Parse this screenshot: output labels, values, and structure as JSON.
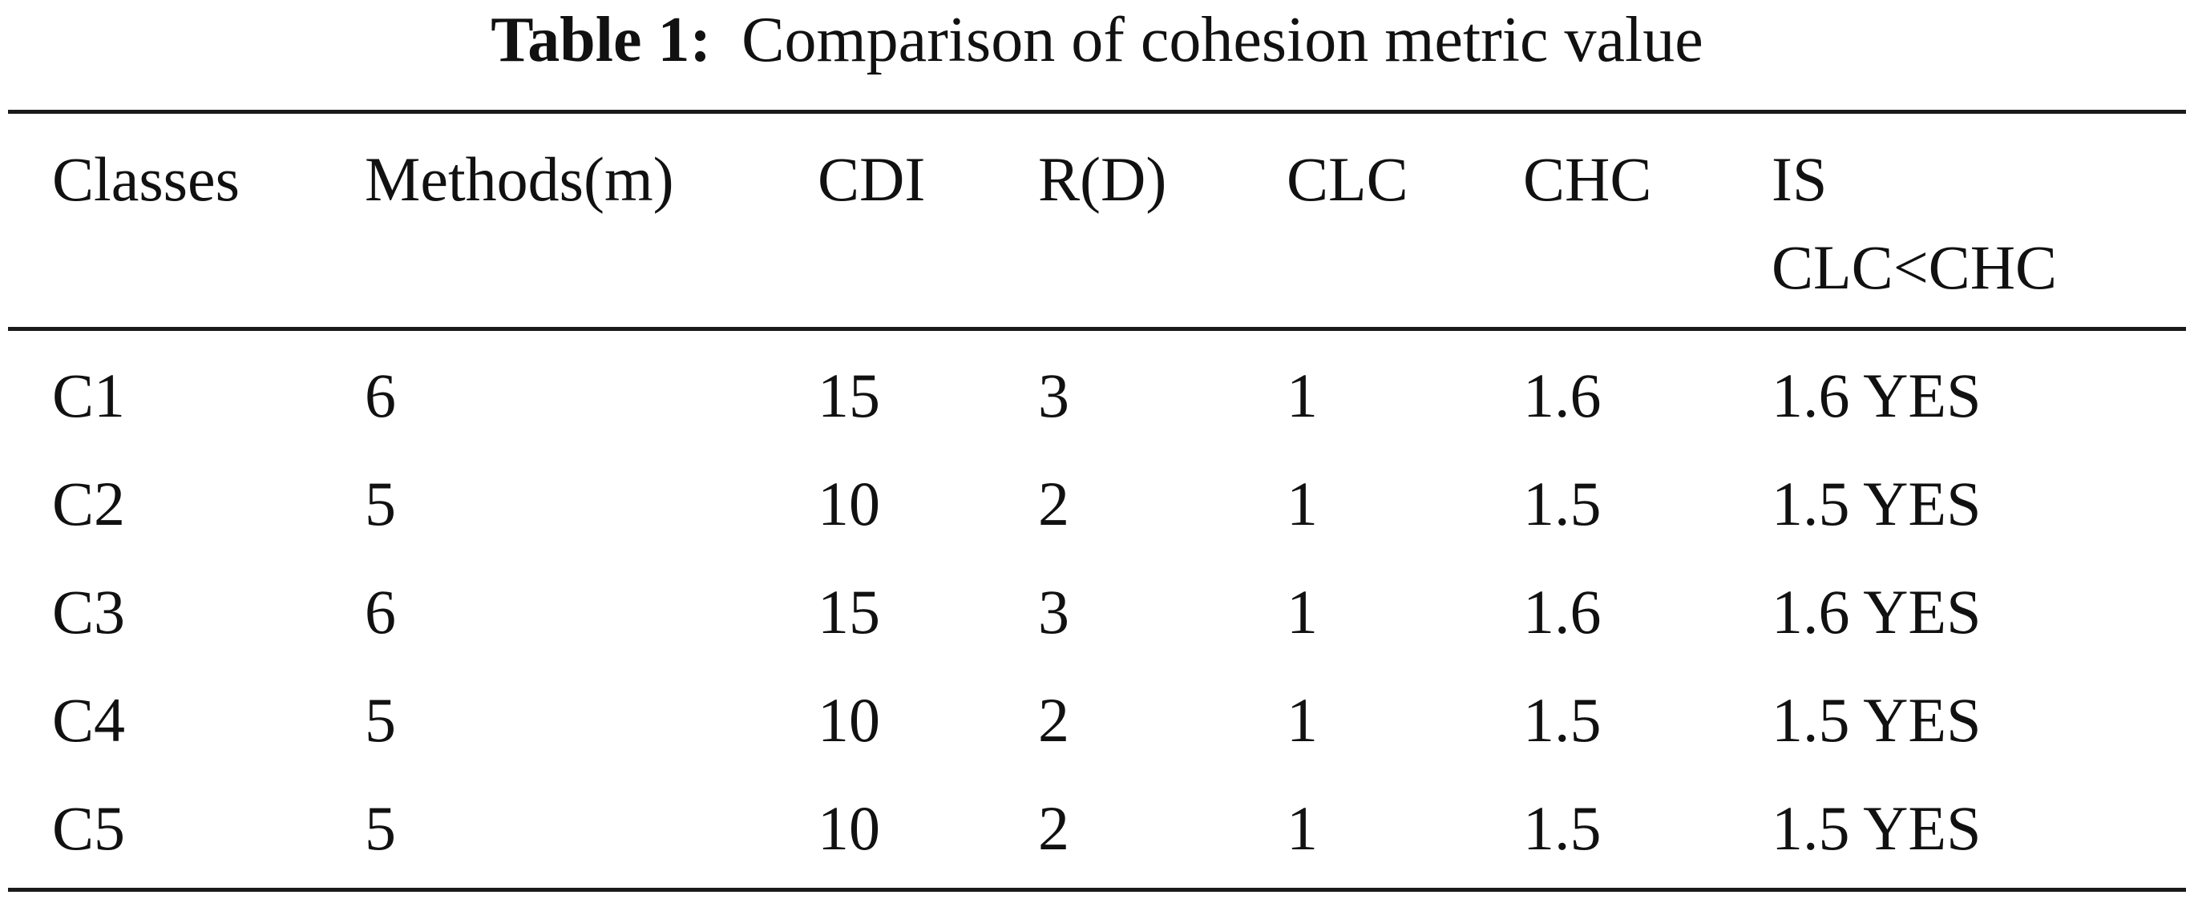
{
  "caption": {
    "label": "Table 1:",
    "text": "Comparison of cohesion metric value"
  },
  "table": {
    "headers": [
      "Classes",
      "Methods(m)",
      "CDI",
      "R(D)",
      "CLC",
      "CHC",
      "IS"
    ],
    "header_last_line2": "CLC<CHC",
    "rows": [
      [
        "C1",
        "6",
        "15",
        "3",
        "1",
        "1.6",
        "1.6 YES"
      ],
      [
        "C2",
        "5",
        "10",
        "2",
        "1",
        "1.5",
        "1.5 YES"
      ],
      [
        "C3",
        "6",
        "15",
        "3",
        "1",
        "1.6",
        "1.6 YES"
      ],
      [
        "C4",
        "5",
        "10",
        "2",
        "1",
        "1.5",
        "1.5 YES"
      ],
      [
        "C5",
        "5",
        "10",
        "2",
        "1",
        "1.5",
        "1.5 YES"
      ]
    ]
  }
}
